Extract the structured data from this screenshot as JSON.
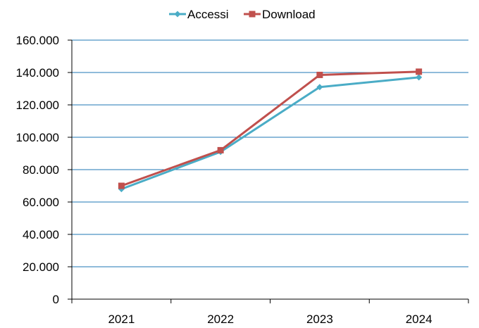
{
  "chart_data": {
    "type": "line",
    "categories": [
      "2021",
      "2022",
      "2023",
      "2024"
    ],
    "series": [
      {
        "name": "Accessi",
        "values": [
          68000,
          91000,
          131000,
          137000
        ],
        "color": "#4AACC6",
        "marker": "diamond"
      },
      {
        "name": "Download",
        "values": [
          70000,
          92000,
          138500,
          140500
        ],
        "color": "#C0504D",
        "marker": "square"
      }
    ],
    "ylim": [
      0,
      160000
    ],
    "ytick_values": [
      0,
      20000,
      40000,
      60000,
      80000,
      100000,
      120000,
      140000,
      160000
    ],
    "ytick_labels": [
      "0",
      "20.000",
      "40.000",
      "60.000",
      "80.000",
      "100.000",
      "120.000",
      "140.000",
      "160.000"
    ],
    "grid": "horizontal",
    "grid_color": "#1F77B4",
    "legend_position": "top-center"
  }
}
